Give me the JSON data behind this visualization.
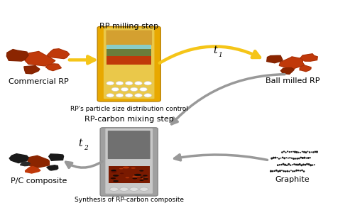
{
  "bg_color": "#ffffff",
  "title_fontsize": 9,
  "label_fontsize": 8,
  "annotation_fontsize": 10,
  "labels": {
    "commercial_rp": "Commercial RP",
    "ball_milled_rp": "Ball milled RP",
    "pc_composite": "P/C composite",
    "graphite": "Graphite",
    "rp_milling_step": "RP milling step",
    "rp_carbon_mixing_step": "RP-carbon mixing step",
    "rp_particle_size": "RP's particle size distribution control",
    "synthesis_rp_carbon": "Synthesis of RP-carbon composite",
    "t1": "t",
    "t1_sub": "1",
    "t2": "t",
    "t2_sub": "2"
  },
  "colors": {
    "gold_arrow": "#F5C518",
    "silver_arrow": "#999999",
    "rp_orange": "#C0390A",
    "rp_dark": "#8B2500",
    "carbon_black": "#1a1a1a",
    "milling_jar_outer": "#E8A800",
    "milling_jar_sand": "#D4A030",
    "milling_jar_cyan": "#89CCC8",
    "milling_jar_green": "#6B7C3A",
    "milling_jar_rp": "#C0390A",
    "milling_jar_ball": "#f0f0f0",
    "mixing_jar_outer": "#a0a0a0",
    "mixing_jar_inner": "#c8c8c8",
    "mixing_jar_dark": "#707070",
    "mixing_jar_rp": "#7a1a00",
    "mixing_jar_ball": "#e0e0e0"
  }
}
